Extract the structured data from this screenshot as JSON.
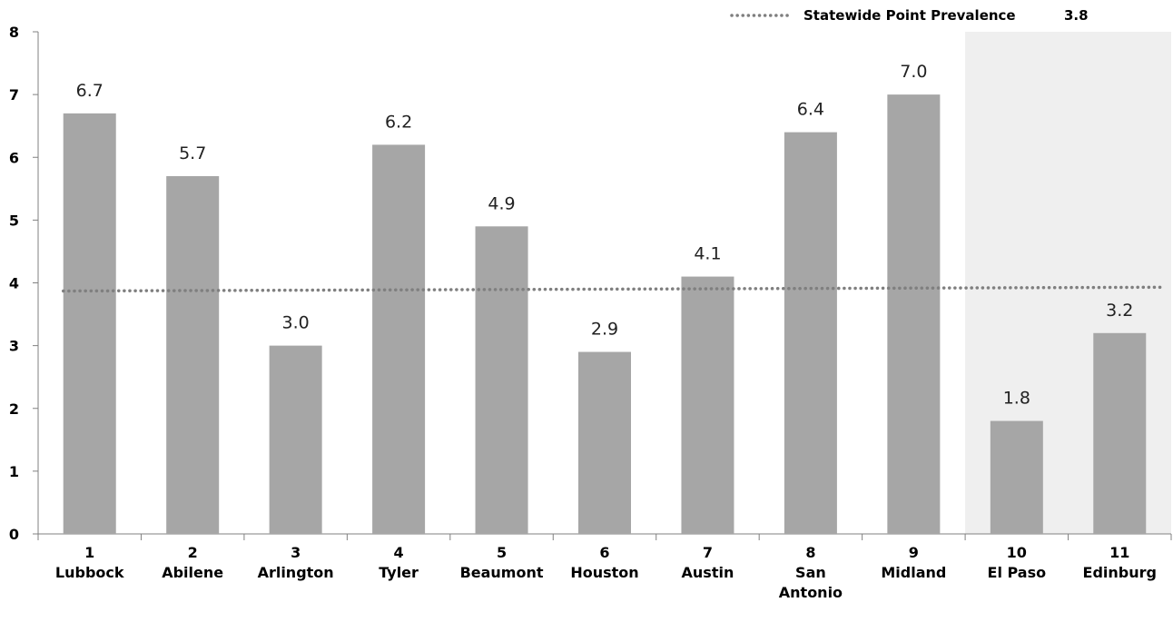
{
  "chart_data": {
    "type": "bar",
    "categories": [
      {
        "number": "1",
        "name": [
          "Lubbock"
        ]
      },
      {
        "number": "2",
        "name": [
          "Abilene"
        ]
      },
      {
        "number": "3",
        "name": [
          "Arlington"
        ]
      },
      {
        "number": "4",
        "name": [
          "Tyler"
        ]
      },
      {
        "number": "5",
        "name": [
          "Beaumont"
        ]
      },
      {
        "number": "6",
        "name": [
          "Houston"
        ]
      },
      {
        "number": "7",
        "name": [
          "Austin"
        ]
      },
      {
        "number": "8",
        "name": [
          "San",
          "Antonio"
        ]
      },
      {
        "number": "9",
        "name": [
          "Midland"
        ]
      },
      {
        "number": "10",
        "name": [
          "El Paso"
        ]
      },
      {
        "number": "11",
        "name": [
          "Edinburg"
        ]
      }
    ],
    "values": [
      6.7,
      5.7,
      3.0,
      6.2,
      4.9,
      2.9,
      4.1,
      6.4,
      7.0,
      1.8,
      3.2
    ],
    "data_labels": [
      "6.7",
      "5.7",
      "3.0",
      "6.2",
      "4.9",
      "2.9",
      "4.1",
      "6.4",
      "7.0",
      "1.8",
      "3.2"
    ],
    "reference_line": {
      "label": "Statewide Point Prevalence",
      "value_label": "3.8",
      "value": 3.8,
      "y_start": 3.87,
      "y_end": 3.93,
      "style": "dotted"
    },
    "highlight_categories": [
      "10",
      "11"
    ],
    "ylim": [
      0,
      8
    ],
    "yticks": [
      "0",
      "1",
      "2",
      "3",
      "4",
      "5",
      "6",
      "7",
      "8"
    ],
    "grid": false,
    "legend_position": "top-right",
    "colors": {
      "bar": "#a6a6a6",
      "reference_line": "#7f7f7f",
      "highlight_background": "#efefef",
      "axis": "#808080"
    }
  }
}
